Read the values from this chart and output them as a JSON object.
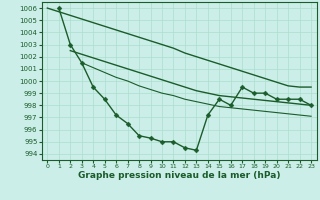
{
  "background_color": "#cceee8",
  "grid_color": "#aaddcc",
  "line_color": "#1a5c2a",
  "xlabel": "Graphe pression niveau de la mer (hPa)",
  "xlabel_fontsize": 6.5,
  "ylim": [
    993.5,
    1006.5
  ],
  "xlim": [
    -0.5,
    23.5
  ],
  "yticks": [
    994,
    995,
    996,
    997,
    998,
    999,
    1000,
    1001,
    1002,
    1003,
    1004,
    1005,
    1006
  ],
  "xticks": [
    0,
    1,
    2,
    3,
    4,
    5,
    6,
    7,
    8,
    9,
    10,
    11,
    12,
    13,
    14,
    15,
    16,
    17,
    18,
    19,
    20,
    21,
    22,
    23
  ],
  "series": [
    {
      "x": [
        1,
        2,
        3,
        4,
        5,
        6,
        7,
        8,
        9,
        10,
        11,
        12,
        13,
        14,
        15,
        16,
        17,
        18,
        19,
        20,
        21,
        22,
        23
      ],
      "y": [
        1006,
        1003,
        1001.5,
        999.5,
        998.5,
        997.2,
        996.5,
        995.5,
        995.3,
        995.0,
        995.0,
        994.5,
        994.3,
        997.2,
        998.5,
        998.0,
        999.5,
        999.0,
        999.0,
        998.5,
        998.5,
        998.5,
        998.0
      ],
      "marker": "D",
      "markersize": 2.5,
      "linewidth": 1.0
    },
    {
      "x": [
        0,
        1,
        2,
        3,
        4,
        5,
        6,
        7,
        8,
        9,
        10,
        11,
        12,
        13,
        14,
        15,
        16,
        17,
        18,
        19,
        20,
        21,
        22,
        23
      ],
      "y": [
        1006,
        1005.7,
        1005.4,
        1005.1,
        1004.8,
        1004.5,
        1004.2,
        1003.9,
        1003.6,
        1003.3,
        1003.0,
        1002.7,
        1002.3,
        1002.0,
        1001.7,
        1001.4,
        1001.1,
        1000.8,
        1000.5,
        1000.2,
        999.9,
        999.6,
        999.5,
        999.5
      ],
      "marker": null,
      "markersize": 0,
      "linewidth": 1.0
    },
    {
      "x": [
        2,
        3,
        4,
        5,
        6,
        7,
        8,
        9,
        10,
        11,
        12,
        13,
        14,
        15,
        16,
        17,
        18,
        19,
        20,
        21,
        22,
        23
      ],
      "y": [
        1002.5,
        1002.2,
        1001.9,
        1001.6,
        1001.3,
        1001.0,
        1000.7,
        1000.4,
        1000.1,
        999.8,
        999.5,
        999.2,
        999.0,
        998.8,
        998.7,
        998.6,
        998.5,
        998.4,
        998.3,
        998.2,
        998.1,
        998.0
      ],
      "marker": null,
      "markersize": 0,
      "linewidth": 1.0
    },
    {
      "x": [
        3,
        4,
        5,
        6,
        7,
        8,
        9,
        10,
        11,
        12,
        13,
        14,
        15,
        16,
        17,
        18,
        19,
        20,
        21,
        22,
        23
      ],
      "y": [
        1001.5,
        1001.1,
        1000.7,
        1000.3,
        1000.0,
        999.6,
        999.3,
        999.0,
        998.8,
        998.5,
        998.3,
        998.1,
        997.9,
        997.8,
        997.7,
        997.6,
        997.5,
        997.4,
        997.3,
        997.2,
        997.1
      ],
      "marker": null,
      "markersize": 0,
      "linewidth": 0.8
    }
  ]
}
